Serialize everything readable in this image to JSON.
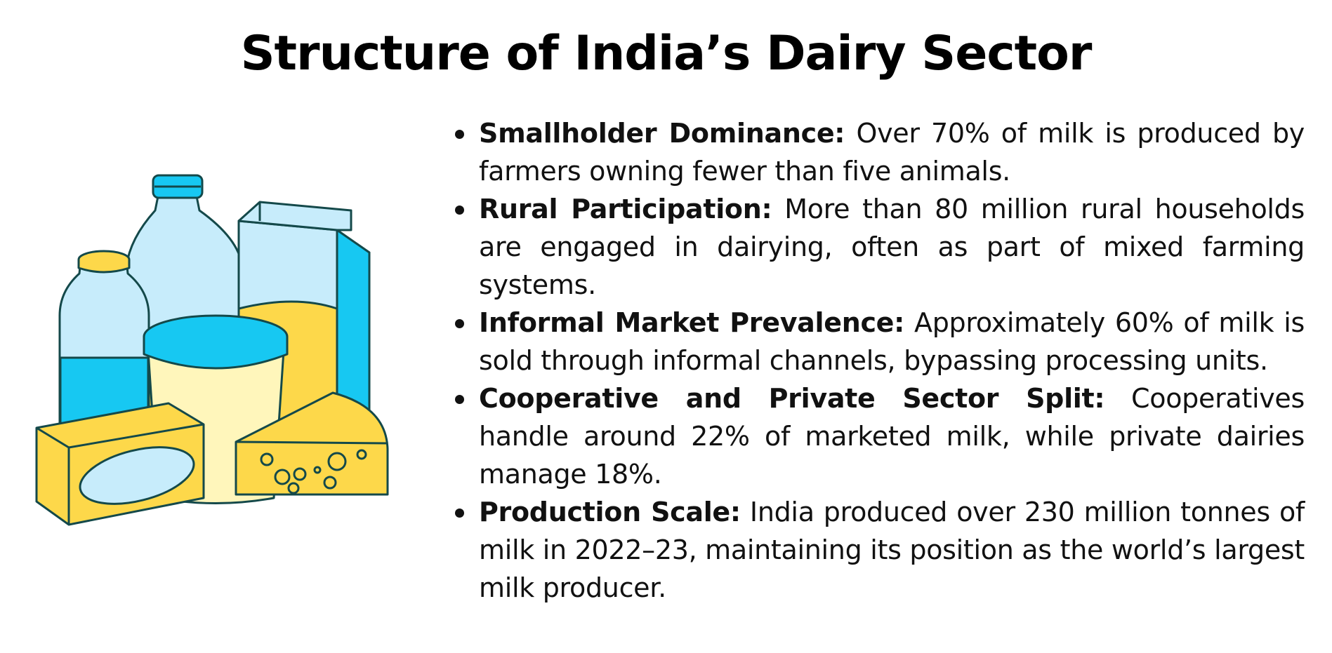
{
  "title": "Structure of India’s Dairy Sector",
  "colors": {
    "cyan": "#17c8f2",
    "light_blue": "#c7ecfb",
    "yellow": "#fdd84a",
    "cream": "#fff6bb",
    "outline": "#14494a"
  },
  "illustration": {
    "icon": "dairy-products-icon"
  },
  "bullets": [
    {
      "label": "Smallholder Dominance:",
      "text": "Over 70% of milk is produced by farmers owning fewer than five animals."
    },
    {
      "label": "Rural Participation:",
      "text": "More than 80 million rural households are engaged in dairying, often as part of mixed farming systems."
    },
    {
      "label": "Informal Market Prevalence:",
      "text": "Approximately 60% of milk is sold through informal channels, bypassing processing units."
    },
    {
      "label": "Cooperative and Private Sector Split:",
      "text": "Cooperatives handle around 22% of marketed milk, while private dairies manage 18%."
    },
    {
      "label": "Production Scale:",
      "text": "India produced over 230 million tonnes of milk in 2022–23, maintaining its position as the world’s largest milk producer."
    }
  ]
}
